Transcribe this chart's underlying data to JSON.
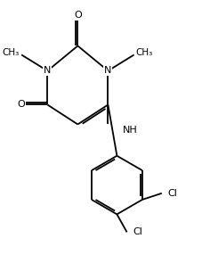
{
  "bg_color": "#ffffff",
  "line_color": "#000000",
  "lw": 1.3,
  "fs": 8.0,
  "fig_w": 2.27,
  "fig_h": 2.95,
  "dpi": 100,
  "xlim": [
    0.0,
    4.8
  ],
  "ylim": [
    -2.5,
    4.8
  ],
  "N1": [
    0.85,
    2.85
  ],
  "C2": [
    1.7,
    3.55
  ],
  "N3": [
    2.55,
    2.85
  ],
  "C4": [
    2.55,
    1.9
  ],
  "C5": [
    1.7,
    1.35
  ],
  "C6": [
    0.85,
    1.9
  ],
  "O2": [
    1.7,
    4.4
  ],
  "O6x": [
    0.12,
    1.9
  ],
  "Me1": [
    0.12,
    3.3
  ],
  "Me3": [
    3.28,
    3.3
  ],
  "NH_label": [
    3.1,
    1.55
  ],
  "BC": [
    2.8,
    -0.35
  ],
  "BR": 0.82,
  "doff_inner": 0.055,
  "doff_outer": 0.065
}
